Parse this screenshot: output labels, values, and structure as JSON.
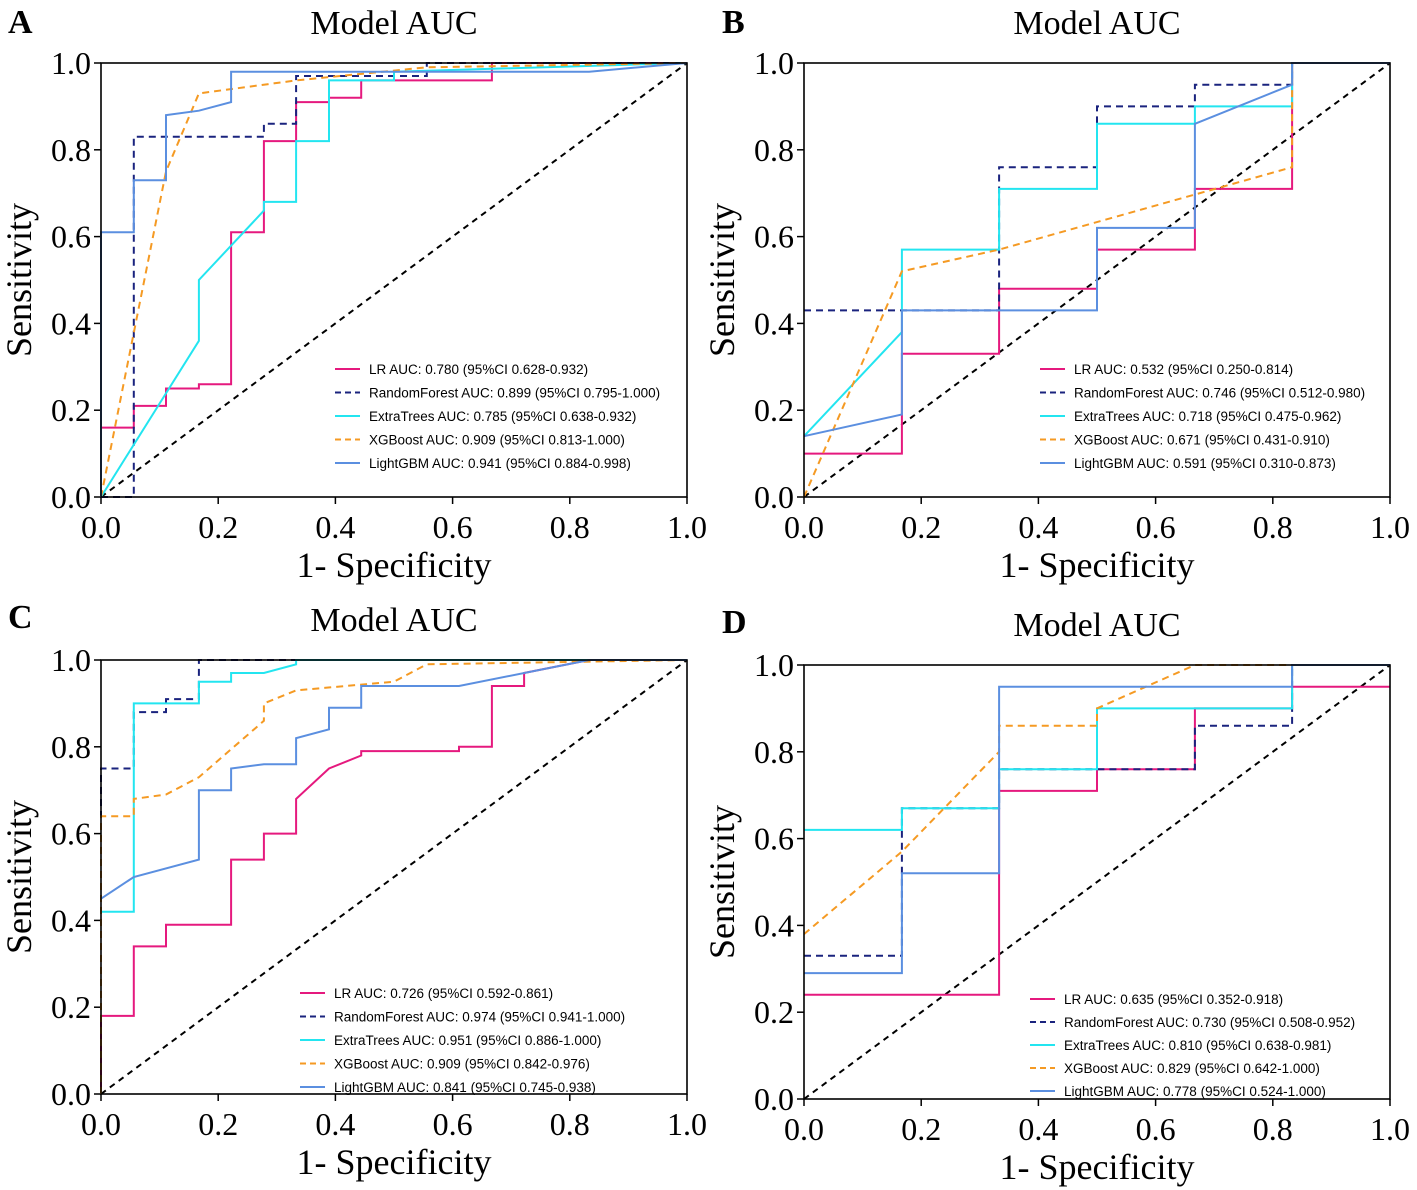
{
  "figure_title": "Model AUC ROC curves",
  "chart_data": [
    {
      "panel": "A",
      "type": "line",
      "title": "Model AUC",
      "xlabel": "1- Specificity",
      "ylabel": "Sensitivity",
      "xlim": [
        0,
        1
      ],
      "ylim": [
        0,
        1
      ],
      "xticks": [
        "0.0",
        "0.2",
        "0.4",
        "0.6",
        "0.8",
        "1.0"
      ],
      "yticks": [
        "0.0",
        "0.2",
        "0.4",
        "0.6",
        "0.8",
        "1.0"
      ],
      "legend_position": "lower-right",
      "series": [
        {
          "name": "LR",
          "color": "#e5197e",
          "dash": "solid",
          "label": "LR AUC: 0.780 (95%CI 0.628-0.932)",
          "x": [
            0,
            0,
            0.056,
            0.056,
            0.111,
            0.111,
            0.167,
            0.167,
            0.222,
            0.222,
            0.278,
            0.278,
            0.333,
            0.333,
            0.389,
            0.389,
            0.444,
            0.444,
            0.667,
            0.667,
            1
          ],
          "y": [
            0,
            0.16,
            0.16,
            0.21,
            0.21,
            0.25,
            0.25,
            0.26,
            0.26,
            0.61,
            0.61,
            0.82,
            0.82,
            0.91,
            0.91,
            0.92,
            0.92,
            0.96,
            0.96,
            1,
            1
          ]
        },
        {
          "name": "RandomForest",
          "color": "#1a237e",
          "dash": "dashed",
          "label": "RandomForest AUC: 0.899 (95%CI 0.795-1.000)",
          "x": [
            0,
            0.056,
            0.056,
            0.278,
            0.278,
            0.333,
            0.333,
            0.556,
            0.556,
            1
          ],
          "y": [
            0,
            0,
            0.83,
            0.83,
            0.86,
            0.86,
            0.97,
            0.97,
            1,
            1
          ]
        },
        {
          "name": "ExtraTrees",
          "color": "#23e5f0",
          "dash": "solid",
          "label": "ExtraTrees AUC: 0.785 (95%CI 0.638-0.932)",
          "x": [
            0,
            0.167,
            0.167,
            0.278,
            0.278,
            0.333,
            0.333,
            0.389,
            0.389,
            0.5,
            0.5,
            1
          ],
          "y": [
            0,
            0.36,
            0.5,
            0.66,
            0.68,
            0.68,
            0.82,
            0.82,
            0.96,
            0.96,
            0.98,
            1
          ]
        },
        {
          "name": "XGBoost",
          "color": "#f59a23",
          "dash": "dashed",
          "label": "XGBoost AUC: 0.909 (95%CI 0.813-1.000)",
          "x": [
            0,
            0.111,
            0.167,
            0.333,
            0.556,
            1
          ],
          "y": [
            0,
            0.75,
            0.93,
            0.96,
            0.99,
            1
          ]
        },
        {
          "name": "LightGBM",
          "color": "#5b8fe0",
          "dash": "solid",
          "label": "LightGBM AUC: 0.941 (95%CI 0.884-0.998)",
          "x": [
            0,
            0,
            0.056,
            0.056,
            0.111,
            0.111,
            0.167,
            0.222,
            0.222,
            0.833,
            1
          ],
          "y": [
            0,
            0.61,
            0.61,
            0.73,
            0.73,
            0.88,
            0.89,
            0.91,
            0.98,
            0.98,
            1
          ]
        }
      ]
    },
    {
      "panel": "B",
      "type": "line",
      "title": "Model AUC",
      "xlabel": "1- Specificity",
      "ylabel": "Sensitivity",
      "xlim": [
        0,
        1
      ],
      "ylim": [
        0,
        1
      ],
      "xticks": [
        "0.0",
        "0.2",
        "0.4",
        "0.6",
        "0.8",
        "1.0"
      ],
      "yticks": [
        "0.0",
        "0.2",
        "0.4",
        "0.6",
        "0.8",
        "1.0"
      ],
      "legend_position": "lower-right",
      "series": [
        {
          "name": "LR",
          "color": "#e5197e",
          "dash": "solid",
          "label": "LR AUC: 0.532 (95%CI 0.250-0.814)",
          "x": [
            0,
            0.167,
            0.167,
            0.333,
            0.333,
            0.5,
            0.5,
            0.667,
            0.667,
            0.833,
            0.833,
            1
          ],
          "y": [
            0.1,
            0.1,
            0.33,
            0.33,
            0.48,
            0.48,
            0.57,
            0.57,
            0.71,
            0.71,
            1,
            1
          ]
        },
        {
          "name": "RandomForest",
          "color": "#1a237e",
          "dash": "dashed",
          "label": "RandomForest AUC: 0.746 (95%CI 0.512-0.980)",
          "x": [
            0,
            0.333,
            0.333,
            0.5,
            0.5,
            0.667,
            0.667,
            0.833,
            0.833,
            1
          ],
          "y": [
            0.43,
            0.43,
            0.76,
            0.76,
            0.9,
            0.9,
            0.95,
            0.95,
            1,
            1
          ]
        },
        {
          "name": "ExtraTrees",
          "color": "#23e5f0",
          "dash": "solid",
          "label": "ExtraTrees AUC: 0.718 (95%CI 0.475-0.962)",
          "x": [
            0,
            0.167,
            0.167,
            0.333,
            0.333,
            0.5,
            0.5,
            0.667,
            0.667,
            0.833,
            0.833,
            1
          ],
          "y": [
            0.14,
            0.38,
            0.57,
            0.57,
            0.71,
            0.71,
            0.86,
            0.86,
            0.9,
            0.9,
            1,
            1
          ]
        },
        {
          "name": "XGBoost",
          "color": "#f59a23",
          "dash": "dashed",
          "label": "XGBoost AUC: 0.671 (95%CI 0.431-0.910)",
          "x": [
            0,
            0.167,
            0.333,
            0.833,
            0.833,
            1
          ],
          "y": [
            0,
            0.52,
            0.57,
            0.76,
            1,
            1
          ]
        },
        {
          "name": "LightGBM",
          "color": "#5b8fe0",
          "dash": "solid",
          "label": "LightGBM AUC: 0.591 (95%CI 0.310-0.873)",
          "x": [
            0,
            0.167,
            0.167,
            0.5,
            0.5,
            0.667,
            0.667,
            0.833,
            0.833,
            1
          ],
          "y": [
            0.14,
            0.19,
            0.43,
            0.43,
            0.62,
            0.62,
            0.86,
            0.95,
            1,
            1
          ]
        }
      ]
    },
    {
      "panel": "C",
      "type": "line",
      "title": "Model AUC",
      "xlabel": "1- Specificity",
      "ylabel": "Sensitivity",
      "xlim": [
        0,
        1
      ],
      "ylim": [
        0,
        1
      ],
      "xticks": [
        "0.0",
        "0.2",
        "0.4",
        "0.6",
        "0.8",
        "1.0"
      ],
      "yticks": [
        "0.0",
        "0.2",
        "0.4",
        "0.6",
        "0.8",
        "1.0"
      ],
      "legend_position": "lower-right",
      "series": [
        {
          "name": "LR",
          "color": "#e5197e",
          "dash": "solid",
          "label": "LR AUC: 0.726 (95%CI 0.592-0.861)",
          "x": [
            0,
            0,
            0.056,
            0.056,
            0.111,
            0.111,
            0.222,
            0.222,
            0.278,
            0.278,
            0.333,
            0.333,
            0.333,
            0.389,
            0.389,
            0.444,
            0.444,
            0.611,
            0.611,
            0.667,
            0.667,
            0.722,
            0.722,
            0.833,
            1
          ],
          "y": [
            0,
            0.18,
            0.18,
            0.34,
            0.34,
            0.39,
            0.39,
            0.54,
            0.54,
            0.6,
            0.6,
            0.68,
            0.68,
            0.75,
            0.75,
            0.78,
            0.79,
            0.79,
            0.8,
            0.8,
            0.94,
            0.94,
            0.97,
            1,
            1
          ]
        },
        {
          "name": "RandomForest",
          "color": "#1a237e",
          "dash": "dashed",
          "label": "RandomForest AUC: 0.974 (95%CI 0.941-1.000)",
          "x": [
            0,
            0,
            0.056,
            0.056,
            0.111,
            0.111,
            0.167,
            0.167,
            1
          ],
          "y": [
            0,
            0.75,
            0.75,
            0.88,
            0.88,
            0.91,
            0.91,
            1,
            1
          ]
        },
        {
          "name": "ExtraTrees",
          "color": "#23e5f0",
          "dash": "solid",
          "label": "ExtraTrees AUC: 0.951 (95%CI 0.886-1.000)",
          "x": [
            0,
            0.056,
            0.056,
            0.167,
            0.167,
            0.222,
            0.222,
            0.278,
            0.333,
            0.333,
            1
          ],
          "y": [
            0.42,
            0.42,
            0.9,
            0.9,
            0.95,
            0.95,
            0.97,
            0.97,
            0.99,
            1,
            1
          ]
        },
        {
          "name": "XGBoost",
          "color": "#f59a23",
          "dash": "dashed",
          "label": "XGBoost AUC: 0.909 (95%CI 0.842-0.976)",
          "x": [
            0,
            0,
            0.056,
            0.056,
            0.111,
            0.167,
            0.278,
            0.278,
            0.333,
            0.5,
            0.556,
            1
          ],
          "y": [
            0,
            0.64,
            0.64,
            0.68,
            0.69,
            0.73,
            0.86,
            0.9,
            0.93,
            0.95,
            0.99,
            1
          ]
        },
        {
          "name": "LightGBM",
          "color": "#5b8fe0",
          "dash": "solid",
          "label": "LightGBM AUC: 0.841 (95%CI 0.745-0.938)",
          "x": [
            0,
            0.056,
            0.167,
            0.167,
            0.222,
            0.222,
            0.278,
            0.333,
            0.333,
            0.389,
            0.389,
            0.444,
            0.444,
            0.611,
            0.833,
            1
          ],
          "y": [
            0.45,
            0.5,
            0.54,
            0.7,
            0.7,
            0.75,
            0.76,
            0.76,
            0.82,
            0.84,
            0.89,
            0.89,
            0.94,
            0.94,
            1,
            1
          ]
        }
      ]
    },
    {
      "panel": "D",
      "type": "line",
      "title": "Model AUC",
      "xlabel": "1- Specificity",
      "ylabel": "Sensitivity",
      "xlim": [
        0,
        1
      ],
      "ylim": [
        0,
        1
      ],
      "xticks": [
        "0.0",
        "0.2",
        "0.4",
        "0.6",
        "0.8",
        "1.0"
      ],
      "yticks": [
        "0.0",
        "0.2",
        "0.4",
        "0.6",
        "0.8",
        "1.0"
      ],
      "legend_position": "lower-right",
      "series": [
        {
          "name": "LR",
          "color": "#e5197e",
          "dash": "solid",
          "label": "LR AUC: 0.635 (95%CI 0.352-0.918)",
          "x": [
            0,
            0.333,
            0.333,
            0.5,
            0.5,
            0.667,
            0.667,
            0.833,
            0.833,
            1
          ],
          "y": [
            0.24,
            0.24,
            0.71,
            0.71,
            0.76,
            0.76,
            0.9,
            0.9,
            0.95,
            0.95
          ]
        },
        {
          "name": "RandomForest",
          "color": "#1a237e",
          "dash": "dashed",
          "label": "RandomForest AUC: 0.730 (95%CI 0.508-0.952)",
          "x": [
            0,
            0.167,
            0.167,
            0.333,
            0.333,
            0.667,
            0.667,
            0.833,
            0.833,
            1
          ],
          "y": [
            0.33,
            0.33,
            0.67,
            0.67,
            0.76,
            0.76,
            0.86,
            0.86,
            1,
            1
          ]
        },
        {
          "name": "ExtraTrees",
          "color": "#23e5f0",
          "dash": "solid",
          "label": "ExtraTrees AUC: 0.810 (95%CI 0.638-0.981)",
          "x": [
            0,
            0.167,
            0.167,
            0.333,
            0.333,
            0.5,
            0.5,
            0.833,
            0.833,
            1
          ],
          "y": [
            0.62,
            0.62,
            0.67,
            0.67,
            0.76,
            0.76,
            0.9,
            0.9,
            1,
            1
          ]
        },
        {
          "name": "XGBoost",
          "color": "#f59a23",
          "dash": "dashed",
          "label": "XGBoost AUC: 0.829 (95%CI 0.642-1.000)",
          "x": [
            0,
            0.167,
            0.333,
            0.333,
            0.5,
            0.5,
            0.667,
            0.833,
            0.833,
            1
          ],
          "y": [
            0.38,
            0.57,
            0.8,
            0.86,
            0.86,
            0.9,
            1,
            1,
            1,
            1
          ]
        },
        {
          "name": "LightGBM",
          "color": "#5b8fe0",
          "dash": "solid",
          "label": "LightGBM AUC: 0.778 (95%CI 0.524-1.000)",
          "x": [
            0,
            0.167,
            0.167,
            0.333,
            0.333,
            0.833,
            0.833,
            1
          ],
          "y": [
            0.29,
            0.29,
            0.52,
            0.52,
            0.95,
            0.95,
            1,
            1
          ]
        }
      ]
    }
  ]
}
